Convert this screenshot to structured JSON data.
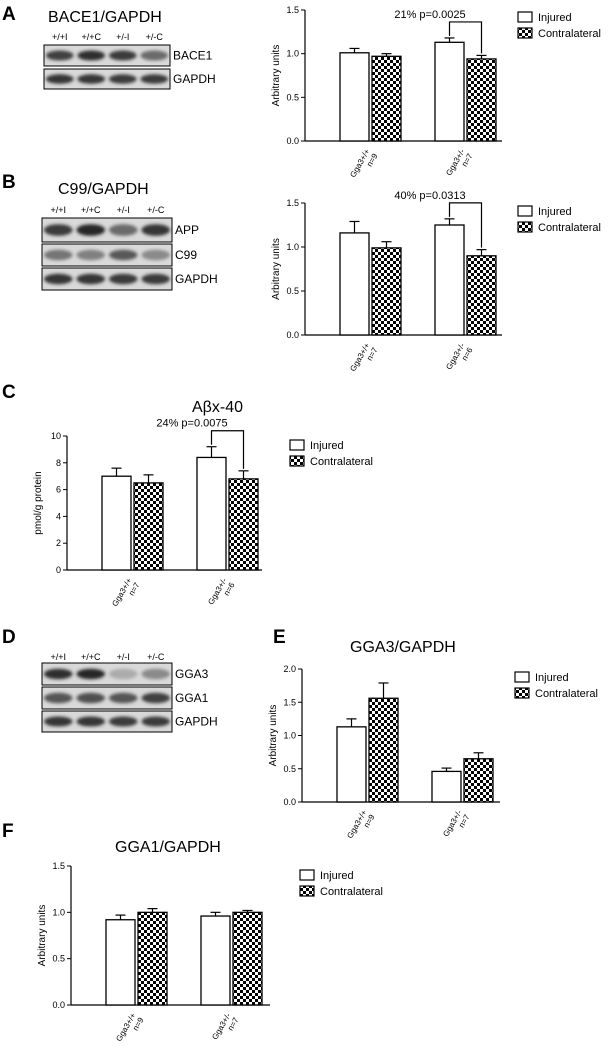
{
  "panels": [
    {
      "id": "A",
      "label": "A",
      "title": "BACE1/GAPDH"
    },
    {
      "id": "B",
      "label": "B",
      "title": "C99/GAPDH"
    },
    {
      "id": "C",
      "label": "C",
      "title": "Aβx-40"
    },
    {
      "id": "D",
      "label": "D",
      "title": ""
    },
    {
      "id": "E",
      "label": "E",
      "title": "GGA3/GAPDH"
    },
    {
      "id": "F",
      "label": "F",
      "title": "GGA1/GAPDH"
    }
  ],
  "legend": {
    "injured": "Injured",
    "contralateral": "Contralateral"
  },
  "blots": {
    "A": {
      "lanes": [
        "+/+I",
        "+/+C",
        "+/-I",
        "+/-C"
      ],
      "strips": [
        {
          "label": "BACE1",
          "bands": [
            0.8,
            0.88,
            0.82,
            0.6
          ]
        },
        {
          "label": "GAPDH",
          "bands": [
            0.85,
            0.85,
            0.82,
            0.82
          ]
        }
      ]
    },
    "B": {
      "lanes": [
        "+/+I",
        "+/+C",
        "+/-I",
        "+/-C"
      ],
      "strips": [
        {
          "label": "APP",
          "bands": [
            0.82,
            0.92,
            0.6,
            0.85
          ]
        },
        {
          "label": "C99",
          "bands": [
            0.55,
            0.5,
            0.68,
            0.45
          ]
        },
        {
          "label": "GAPDH",
          "bands": [
            0.85,
            0.85,
            0.82,
            0.82
          ]
        }
      ]
    },
    "D": {
      "lanes": [
        "+/+I",
        "+/+C",
        "+/-I",
        "+/-C"
      ],
      "strips": [
        {
          "label": "GGA3",
          "bands": [
            0.88,
            0.92,
            0.3,
            0.45
          ]
        },
        {
          "label": "GGA1",
          "bands": [
            0.7,
            0.72,
            0.7,
            0.8
          ]
        },
        {
          "label": "GAPDH",
          "bands": [
            0.85,
            0.85,
            0.82,
            0.82
          ]
        }
      ]
    }
  },
  "chart_data": [
    {
      "panel": "A",
      "type": "bar",
      "ylabel": "Arbitrary units",
      "ylim": [
        0,
        1.5
      ],
      "yticks": [
        "0.0",
        "0.5",
        "1.0",
        "1.5"
      ],
      "categories": [
        {
          "genotype": "Gga3+/+",
          "n": "n=9"
        },
        {
          "genotype": "Gga3+/-",
          "n": "n=7"
        }
      ],
      "series": [
        {
          "name": "Injured",
          "values": [
            1.01,
            1.13
          ],
          "errors": [
            0.05,
            0.05
          ]
        },
        {
          "name": "Contralateral",
          "values": [
            0.97,
            0.94
          ],
          "errors": [
            0.03,
            0.04
          ]
        }
      ],
      "annotation": "21% p=0.0025"
    },
    {
      "panel": "B",
      "type": "bar",
      "ylabel": "Arbitrary units",
      "ylim": [
        0,
        1.5
      ],
      "yticks": [
        "0.0",
        "0.5",
        "1.0",
        "1.5"
      ],
      "categories": [
        {
          "genotype": "Gga3+/+",
          "n": "n=7"
        },
        {
          "genotype": "Gga3+/-",
          "n": "n=6"
        }
      ],
      "series": [
        {
          "name": "Injured",
          "values": [
            1.16,
            1.25
          ],
          "errors": [
            0.13,
            0.07
          ]
        },
        {
          "name": "Contralateral",
          "values": [
            0.99,
            0.9
          ],
          "errors": [
            0.07,
            0.07
          ]
        }
      ],
      "annotation": "40% p=0.0313"
    },
    {
      "panel": "C",
      "type": "bar",
      "ylabel": "pmol/g protein",
      "ylim": [
        0,
        10
      ],
      "yticks": [
        "0",
        "2",
        "4",
        "6",
        "8",
        "10"
      ],
      "categories": [
        {
          "genotype": "Gga3+/+",
          "n": "n=7"
        },
        {
          "genotype": "Gga3+/-",
          "n": "n=6"
        }
      ],
      "series": [
        {
          "name": "Injured",
          "values": [
            7.0,
            8.4
          ],
          "errors": [
            0.6,
            0.8
          ]
        },
        {
          "name": "Contralateral",
          "values": [
            6.5,
            6.8
          ],
          "errors": [
            0.6,
            0.6
          ]
        }
      ],
      "annotation": "24% p=0.0075"
    },
    {
      "panel": "E",
      "type": "bar",
      "ylabel": "Arbitrary units",
      "ylim": [
        0,
        2.0
      ],
      "yticks": [
        "0.0",
        "0.5",
        "1.0",
        "1.5",
        "2.0"
      ],
      "categories": [
        {
          "genotype": "Gga3+/+",
          "n": "n=9"
        },
        {
          "genotype": "Gga3+/-",
          "n": "n=7"
        }
      ],
      "series": [
        {
          "name": "Injured",
          "values": [
            1.13,
            0.46
          ],
          "errors": [
            0.12,
            0.05
          ]
        },
        {
          "name": "Contralateral",
          "values": [
            1.56,
            0.65
          ],
          "errors": [
            0.23,
            0.09
          ]
        }
      ],
      "annotation": ""
    },
    {
      "panel": "F",
      "type": "bar",
      "ylabel": "Arbitrary units",
      "ylim": [
        0,
        1.5
      ],
      "yticks": [
        "0.0",
        "0.5",
        "1.0",
        "1.5"
      ],
      "categories": [
        {
          "genotype": "Gga3+/+",
          "n": "n=9"
        },
        {
          "genotype": "Gga3+/-",
          "n": "n=7"
        }
      ],
      "series": [
        {
          "name": "Injured",
          "values": [
            0.92,
            0.96
          ],
          "errors": [
            0.05,
            0.04
          ]
        },
        {
          "name": "Contralateral",
          "values": [
            1.0,
            1.0
          ],
          "errors": [
            0.04,
            0.02
          ]
        }
      ],
      "annotation": ""
    }
  ]
}
